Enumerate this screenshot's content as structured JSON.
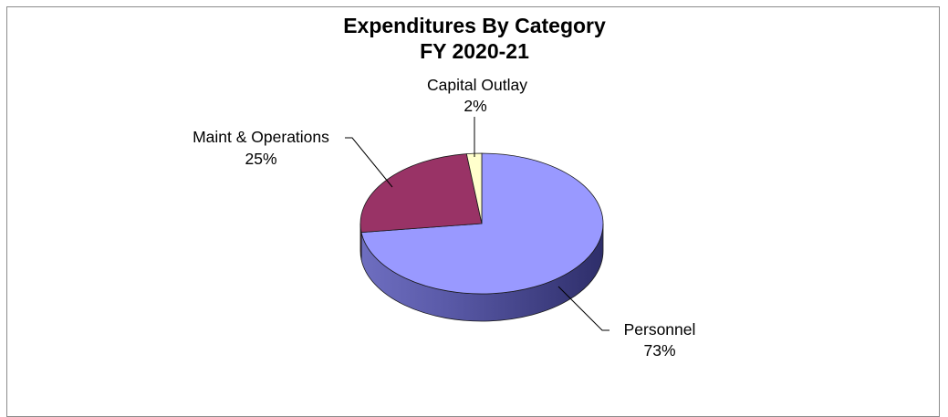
{
  "chart_data": {
    "type": "pie",
    "title": "Expenditures By Category",
    "subtitle": "FY 2020-21",
    "slices": [
      {
        "name": "Personnel",
        "value": 73,
        "label": "73%",
        "color": "#9999ff"
      },
      {
        "name": "Maint & Operations",
        "value": 25,
        "label": "25%",
        "color": "#993366"
      },
      {
        "name": "Capital Outlay",
        "value": 2,
        "label": "2%",
        "color": "#ffffcc"
      }
    ],
    "style": "3d-pie"
  }
}
